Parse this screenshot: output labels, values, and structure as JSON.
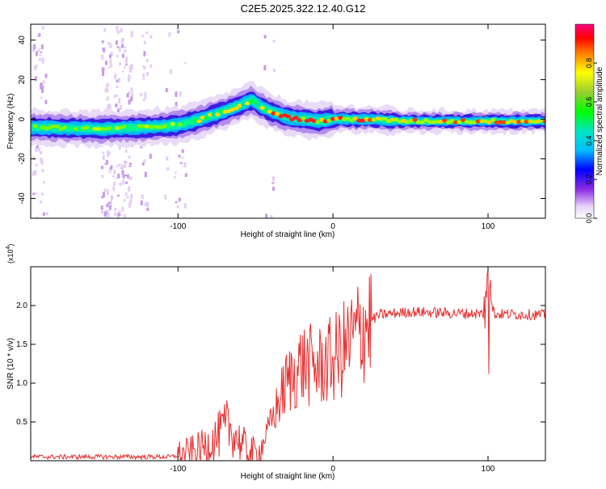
{
  "title": "C2E5.2025.322.12.40.G12",
  "chart_data": [
    {
      "type": "heatmap",
      "xlabel": "Height of straight line (km)",
      "ylabel": "Frequency (Hz)",
      "xlim": [
        -195,
        137
      ],
      "ylim": [
        -50,
        48
      ],
      "xticks": [
        -100,
        0,
        100
      ],
      "yticks": [
        -40,
        -20,
        0,
        20,
        40
      ],
      "ridge": [
        {
          "x": -195,
          "y": -4
        },
        {
          "x": -150,
          "y": -5
        },
        {
          "x": -120,
          "y": -4
        },
        {
          "x": -100,
          "y": -3
        },
        {
          "x": -85,
          "y": 0
        },
        {
          "x": -70,
          "y": 4
        },
        {
          "x": -60,
          "y": 7
        },
        {
          "x": -52,
          "y": 10
        },
        {
          "x": -48,
          "y": 7
        },
        {
          "x": -40,
          "y": 4
        },
        {
          "x": -30,
          "y": 1
        },
        {
          "x": -20,
          "y": 0
        },
        {
          "x": -10,
          "y": -1
        },
        {
          "x": 0,
          "y": 0
        },
        {
          "x": 20,
          "y": 0
        },
        {
          "x": 50,
          "y": -1
        },
        {
          "x": 100,
          "y": -1
        },
        {
          "x": 137,
          "y": -1
        }
      ],
      "colorbar": {
        "label": "Normalized spectral amplitude",
        "ticks": [
          "0.0",
          "0.2",
          "0.4",
          "0.6",
          "0.8"
        ],
        "range": [
          0,
          1
        ]
      }
    },
    {
      "type": "line",
      "xlabel": "Height of straight line (km)",
      "ylabel": "SNR (10 * v/v)",
      "multiplier": "(x10",
      "multiplier_exp": "4",
      "multiplier_close": ")",
      "xlim": [
        -195,
        137
      ],
      "ylim": [
        0,
        2.5
      ],
      "xticks": [
        -100,
        0,
        100
      ],
      "yticks": [
        "0.5",
        "1.0",
        "1.5",
        "2.0"
      ],
      "series_color": "#e83030",
      "profile": [
        {
          "x": -195,
          "y": 0.05
        },
        {
          "x": -105,
          "y": 0.05
        },
        {
          "x": -95,
          "y": 0.08
        },
        {
          "x": -85,
          "y": 0.15
        },
        {
          "x": -75,
          "y": 0.3
        },
        {
          "x": -68,
          "y": 0.45
        },
        {
          "x": -62,
          "y": 0.3
        },
        {
          "x": -55,
          "y": 0.12
        },
        {
          "x": -48,
          "y": 0.08
        },
        {
          "x": -40,
          "y": 0.5
        },
        {
          "x": -30,
          "y": 1.0
        },
        {
          "x": -20,
          "y": 1.25
        },
        {
          "x": -10,
          "y": 1.2
        },
        {
          "x": 0,
          "y": 1.3
        },
        {
          "x": 10,
          "y": 1.5
        },
        {
          "x": 20,
          "y": 1.75
        },
        {
          "x": 30,
          "y": 1.88
        },
        {
          "x": 50,
          "y": 1.92
        },
        {
          "x": 80,
          "y": 1.9
        },
        {
          "x": 137,
          "y": 1.88
        }
      ],
      "spike": {
        "x": 100,
        "peak": 2.45,
        "dip": 1.12
      }
    }
  ]
}
